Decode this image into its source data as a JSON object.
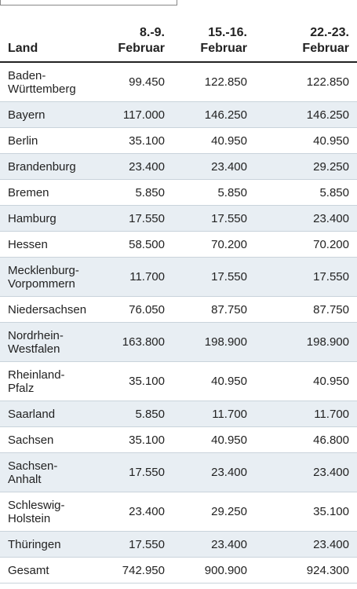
{
  "table": {
    "header": [
      "Land",
      "8.-9.\nFebruar",
      "15.-16.\nFebruar",
      "22.-23.\nFebruar"
    ],
    "rows": [
      [
        "Baden-\nWürttemberg",
        "99.450",
        "122.850",
        "122.850"
      ],
      [
        "Bayern",
        "117.000",
        "146.250",
        "146.250"
      ],
      [
        "Berlin",
        "35.100",
        "40.950",
        "40.950"
      ],
      [
        "Brandenburg",
        "23.400",
        "23.400",
        "29.250"
      ],
      [
        "Bremen",
        "5.850",
        "5.850",
        "5.850"
      ],
      [
        "Hamburg",
        "17.550",
        "17.550",
        "23.400"
      ],
      [
        "Hessen",
        "58.500",
        "70.200",
        "70.200"
      ],
      [
        "Mecklenburg-\nVorpommern",
        "11.700",
        "17.550",
        "17.550"
      ],
      [
        "Niedersachsen",
        "76.050",
        "87.750",
        "87.750"
      ],
      [
        "Nordrhein-\nWestfalen",
        "163.800",
        "198.900",
        "198.900"
      ],
      [
        "Rheinland-\nPfalz",
        "35.100",
        "40.950",
        "40.950"
      ],
      [
        "Saarland",
        "5.850",
        "11.700",
        "11.700"
      ],
      [
        "Sachsen",
        "35.100",
        "40.950",
        "46.800"
      ],
      [
        "Sachsen-\nAnhalt",
        "17.550",
        "23.400",
        "23.400"
      ],
      [
        "Schleswig-\nHolstein",
        "23.400",
        "29.250",
        "35.100"
      ],
      [
        "Thüringen",
        "17.550",
        "23.400",
        "23.400"
      ],
      [
        "Gesamt",
        "742.950",
        "900.900",
        "924.300"
      ]
    ]
  }
}
